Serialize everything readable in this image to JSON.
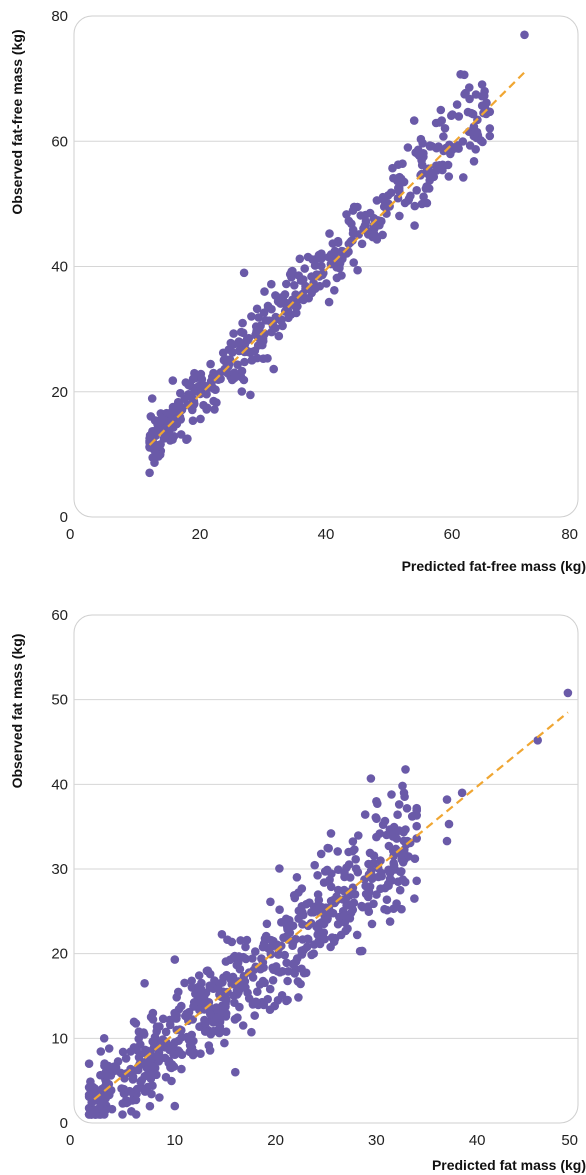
{
  "colors": {
    "points": "#6a5aa8",
    "fit_line": "#f0a632",
    "grid": "#d6d6d6",
    "frame": "#cfcfcf"
  },
  "chart_data": [
    {
      "type": "scatter",
      "title": "",
      "xlabel": "Predicted fat-free mass (kg)",
      "ylabel": "Observed fat-free mass (kg)",
      "xlim": [
        0,
        80
      ],
      "ylim": [
        0,
        80
      ],
      "x_ticks": [
        0,
        20,
        40,
        60,
        80
      ],
      "y_ticks": [
        0,
        20,
        40,
        60,
        80
      ],
      "grid": "horizontal",
      "fit_line": {
        "x": [
          12,
          72
        ],
        "y": [
          11.5,
          71.5
        ],
        "style": "dashed"
      },
      "n_points": 460,
      "point_seed": 7,
      "point_spread": 2.8,
      "x_range": [
        12,
        66
      ],
      "notable_points": [
        {
          "x": 71.5,
          "y": 77
        },
        {
          "x": 62,
          "y": 67.5
        },
        {
          "x": 65,
          "y": 64.5
        },
        {
          "x": 63.5,
          "y": 56.8
        },
        {
          "x": 54,
          "y": 63.3
        },
        {
          "x": 58,
          "y": 63
        },
        {
          "x": 53,
          "y": 59
        },
        {
          "x": 27,
          "y": 39
        },
        {
          "x": 28,
          "y": 19.5
        },
        {
          "x": 18,
          "y": 12.5
        },
        {
          "x": 12,
          "y": 12
        },
        {
          "x": 13,
          "y": 11.5
        }
      ]
    },
    {
      "type": "scatter",
      "title": "",
      "xlabel": "Predicted fat mass (kg)",
      "ylabel": "Observed fat mass (kg)",
      "xlim": [
        0,
        50
      ],
      "ylim": [
        0,
        60
      ],
      "x_ticks": [
        0,
        10,
        20,
        30,
        40,
        50
      ],
      "y_ticks": [
        0,
        10,
        20,
        30,
        40,
        50,
        60
      ],
      "grid": "horizontal",
      "fit_line": {
        "x": [
          2,
          49
        ],
        "y": [
          2.8,
          48.5
        ],
        "style": "dashed"
      },
      "n_points": 640,
      "point_seed": 13,
      "point_spread": 3.2,
      "x_range": [
        1.5,
        34
      ],
      "notable_points": [
        {
          "x": 49,
          "y": 50.8
        },
        {
          "x": 46,
          "y": 45.2
        },
        {
          "x": 38.5,
          "y": 39
        },
        {
          "x": 37,
          "y": 38.2
        },
        {
          "x": 37.2,
          "y": 35.3
        },
        {
          "x": 37,
          "y": 33.3
        },
        {
          "x": 31.5,
          "y": 38.8
        },
        {
          "x": 30,
          "y": 38
        },
        {
          "x": 25.5,
          "y": 34.2
        },
        {
          "x": 10,
          "y": 19.3
        },
        {
          "x": 16,
          "y": 6
        },
        {
          "x": 7,
          "y": 16.5
        },
        {
          "x": 10,
          "y": 2
        },
        {
          "x": 1.5,
          "y": 7
        },
        {
          "x": 3,
          "y": 10
        }
      ]
    }
  ]
}
